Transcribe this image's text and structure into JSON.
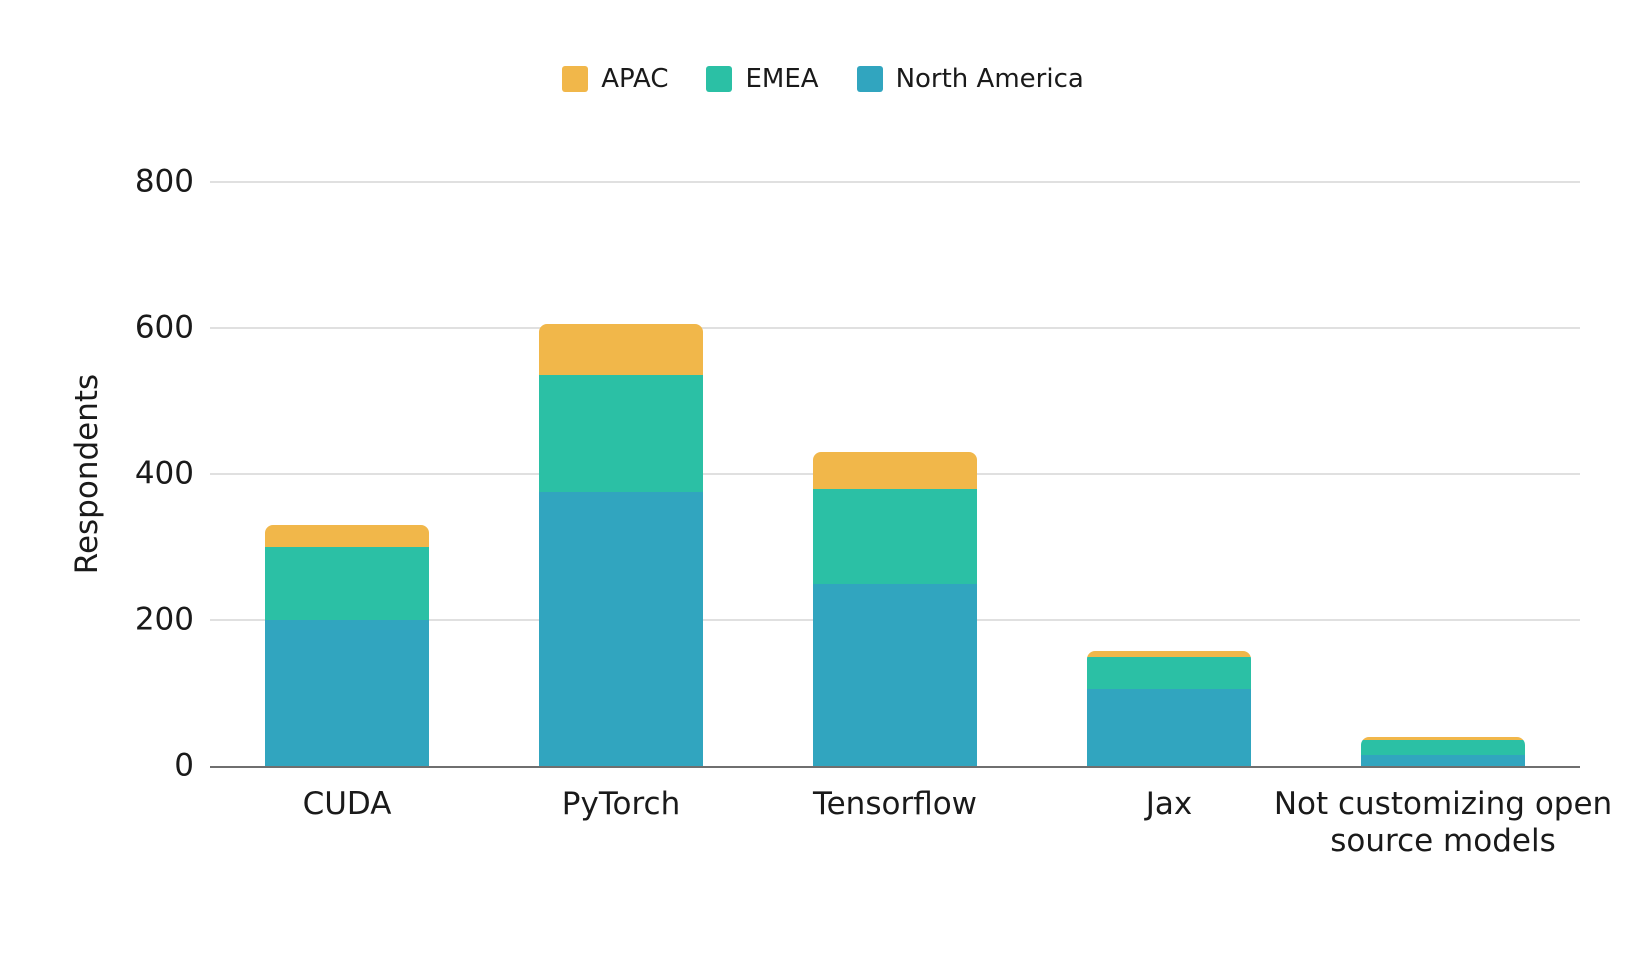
{
  "legend": {
    "items": [
      {
        "label": "APAC",
        "color": "#f1b74a"
      },
      {
        "label": "EMEA",
        "color": "#2bc0a5"
      },
      {
        "label": "North America",
        "color": "#31a5bf"
      }
    ]
  },
  "chart_data": {
    "type": "bar",
    "stacked": true,
    "title": "",
    "xlabel": "",
    "ylabel": "Respondents",
    "categories": [
      "CUDA",
      "PyTorch",
      "Tensorflow",
      "Jax",
      "Not customizing open source models"
    ],
    "series": [
      {
        "name": "North America",
        "color": "#31a5bf",
        "values": [
          200,
          375,
          250,
          105,
          15
        ]
      },
      {
        "name": "EMEA",
        "color": "#2bc0a5",
        "values": [
          100,
          160,
          130,
          45,
          20
        ]
      },
      {
        "name": "APAC",
        "color": "#f1b74a",
        "values": [
          30,
          70,
          50,
          7,
          5
        ]
      }
    ],
    "ylim": [
      0,
      800
    ],
    "yticks": [
      0,
      200,
      400,
      600,
      800
    ],
    "grid": true,
    "legend_position": "top",
    "colors": {
      "gridline": "#e0e0e0",
      "axis_line": "#6f6f6f",
      "text": "#1a1a1a",
      "background": "#ffffff"
    }
  }
}
